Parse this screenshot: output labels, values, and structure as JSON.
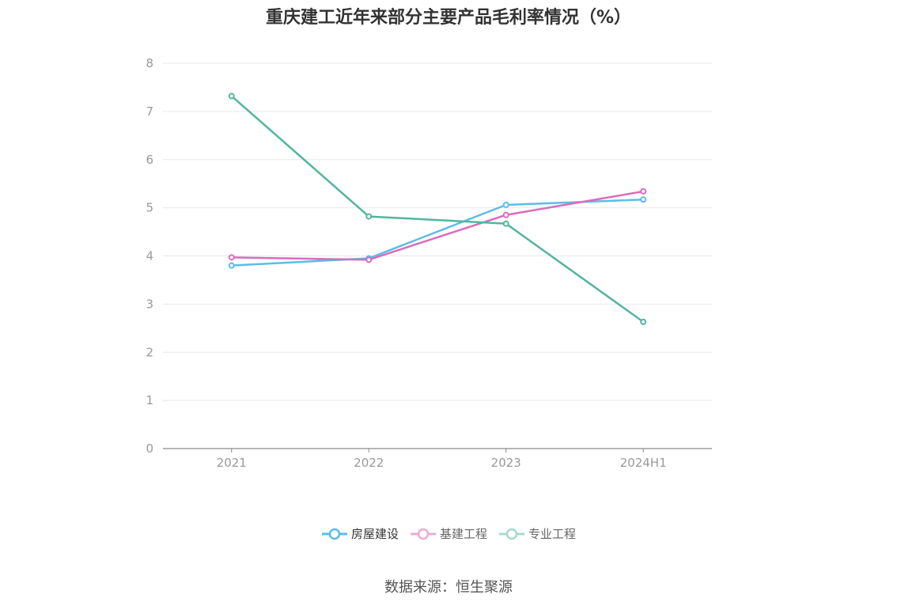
{
  "chart_data": {
    "type": "line",
    "title": "重庆建工近年来部分主要产品毛利率情况（%）",
    "categories": [
      "2021",
      "2022",
      "2023",
      "2024H1"
    ],
    "series": [
      {
        "name": "房屋建设",
        "color": "#5bbde8",
        "values": [
          3.8,
          3.95,
          5.06,
          5.17
        ]
      },
      {
        "name": "基建工程",
        "color": "#d96cbd",
        "values": [
          3.97,
          3.92,
          4.85,
          5.34
        ]
      },
      {
        "name": "专业工程",
        "color": "#52b59e",
        "values": [
          7.32,
          4.82,
          4.67,
          2.63
        ]
      }
    ],
    "ylim": [
      0,
      8
    ],
    "yticks": [
      "0",
      "1",
      "2",
      "3",
      "4",
      "5",
      "6",
      "7",
      "8"
    ],
    "grid": true,
    "legend_position": "bottom"
  },
  "source": "数据来源：恒生聚源"
}
